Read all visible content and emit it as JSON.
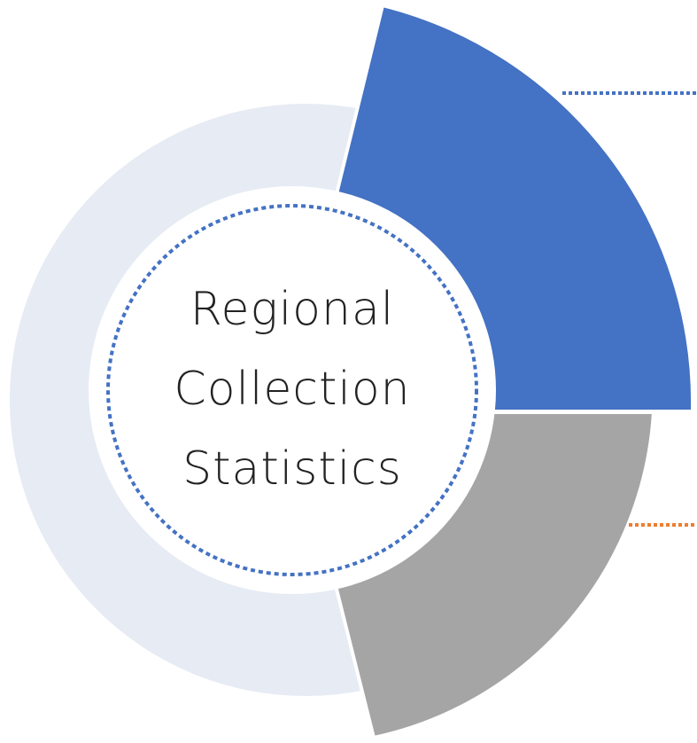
{
  "title_lines": [
    "Regional",
    "Collection",
    "Statistics"
  ]
}
